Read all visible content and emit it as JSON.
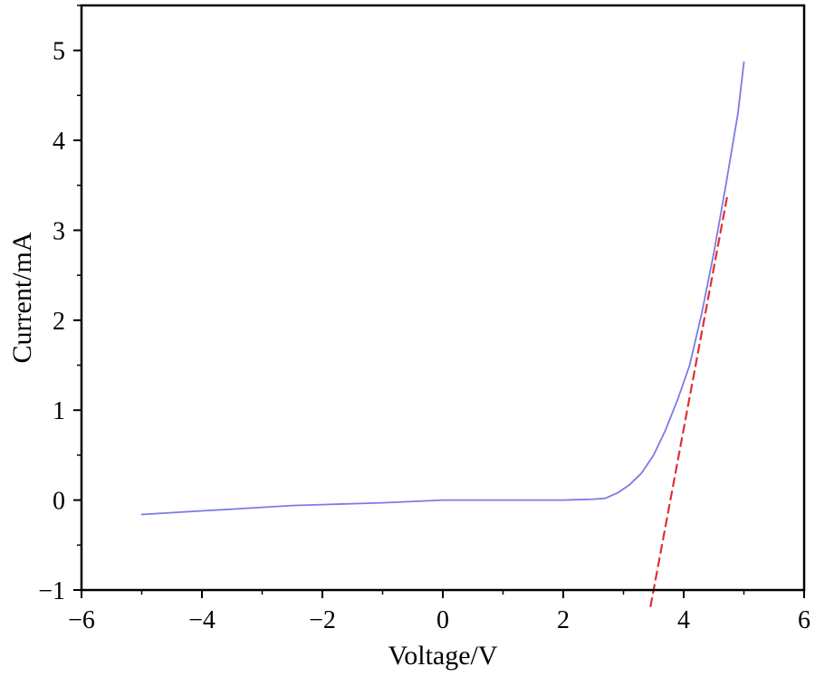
{
  "chart_data": {
    "type": "line",
    "title": "",
    "xlabel": "Voltage/V",
    "ylabel": "Current/mA",
    "xlim": [
      -6,
      6
    ],
    "ylim": [
      -1,
      5.5
    ],
    "x_ticks": [
      -6,
      -4,
      -2,
      0,
      2,
      4,
      6
    ],
    "x_tick_labels": [
      "−6",
      "−4",
      "−2",
      "0",
      "2",
      "4",
      "6"
    ],
    "y_ticks": [
      -1,
      0,
      1,
      2,
      3,
      4,
      5
    ],
    "y_tick_labels": [
      "−1",
      "0",
      "1",
      "2",
      "3",
      "4",
      "5"
    ],
    "grid": false,
    "legend": "none",
    "series": [
      {
        "style": "solid",
        "color": "#7b7be6",
        "x": [
          -5.0,
          -4.5,
          -4.0,
          -3.5,
          -3.0,
          -2.5,
          -2.0,
          -1.5,
          -1.0,
          -0.5,
          0.0,
          0.5,
          1.0,
          1.5,
          2.0,
          2.5,
          2.7,
          2.9,
          3.1,
          3.3,
          3.5,
          3.7,
          3.9,
          4.1,
          4.3,
          4.5,
          4.7,
          4.9,
          5.0
        ],
        "y": [
          -0.16,
          -0.14,
          -0.12,
          -0.1,
          -0.08,
          -0.06,
          -0.05,
          -0.04,
          -0.03,
          -0.015,
          0.0,
          0.0,
          0.0,
          0.0,
          0.0,
          0.01,
          0.02,
          0.08,
          0.17,
          0.3,
          0.5,
          0.78,
          1.12,
          1.5,
          2.08,
          2.75,
          3.5,
          4.3,
          4.87
        ]
      },
      {
        "style": "dashed",
        "color": "#e03030",
        "x": [
          3.45,
          4.72
        ],
        "y": [
          -1.18,
          3.37
        ]
      }
    ]
  }
}
